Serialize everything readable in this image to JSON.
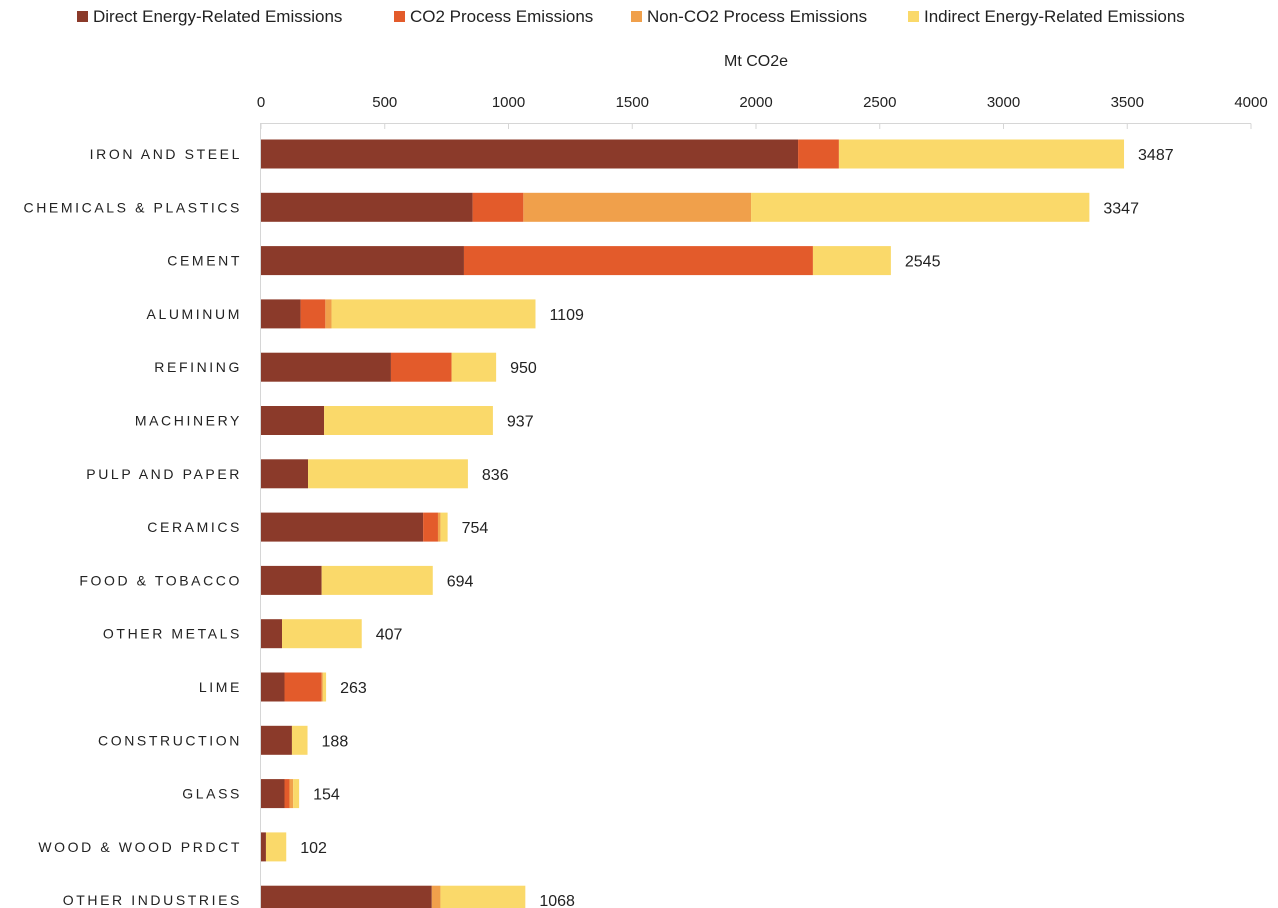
{
  "chart_data": {
    "type": "bar",
    "orientation": "horizontal",
    "stacked": true,
    "xlabel": "Mt CO2e",
    "xlim": [
      0,
      4000
    ],
    "x_ticks": [
      "0",
      "500",
      "1000",
      "1500",
      "2000",
      "2500",
      "3000",
      "3500",
      "4000"
    ],
    "x_axis_position": "top",
    "legend_position": "top",
    "grid": false,
    "categories": [
      "IRON AND STEEL",
      "CHEMICALS & PLASTICS",
      "CEMENT",
      "ALUMINUM",
      "REFINING",
      "MACHINERY",
      "PULP AND PAPER",
      "CERAMICS",
      "FOOD & TOBACCO",
      "OTHER METALS",
      "LIME",
      "CONSTRUCTION",
      "GLASS",
      "WOOD & WOOD PRDCT",
      "OTHER INDUSTRIES"
    ],
    "series": [
      {
        "name": "Direct Energy-Related Emissions",
        "color": "#8B3A2A",
        "values": [
          2170,
          855,
          820,
          160,
          525,
          255,
          190,
          655,
          245,
          85,
          95,
          125,
          95,
          20,
          690
        ]
      },
      {
        "name": "CO2 Process Emissions",
        "color": "#E35B2B",
        "values": [
          165,
          205,
          1410,
          100,
          245,
          0,
          0,
          60,
          0,
          0,
          150,
          0,
          20,
          0,
          0
        ]
      },
      {
        "name": "Non-CO2 Process Emissions",
        "color": "#F0A04B",
        "values": [
          0,
          920,
          0,
          25,
          0,
          0,
          0,
          10,
          0,
          0,
          5,
          0,
          15,
          0,
          35
        ]
      },
      {
        "name": "Indirect Energy-Related Emissions",
        "color": "#FAD96A",
        "values": [
          1152,
          1367,
          315,
          824,
          180,
          682,
          646,
          29,
          449,
          322,
          13,
          63,
          24,
          82,
          343
        ]
      }
    ],
    "totals": [
      "3487",
      "3347",
      "2545",
      "1109",
      "950",
      "937",
      "836",
      "754",
      "694",
      "407",
      "263",
      "188",
      "154",
      "102",
      "1068"
    ]
  }
}
